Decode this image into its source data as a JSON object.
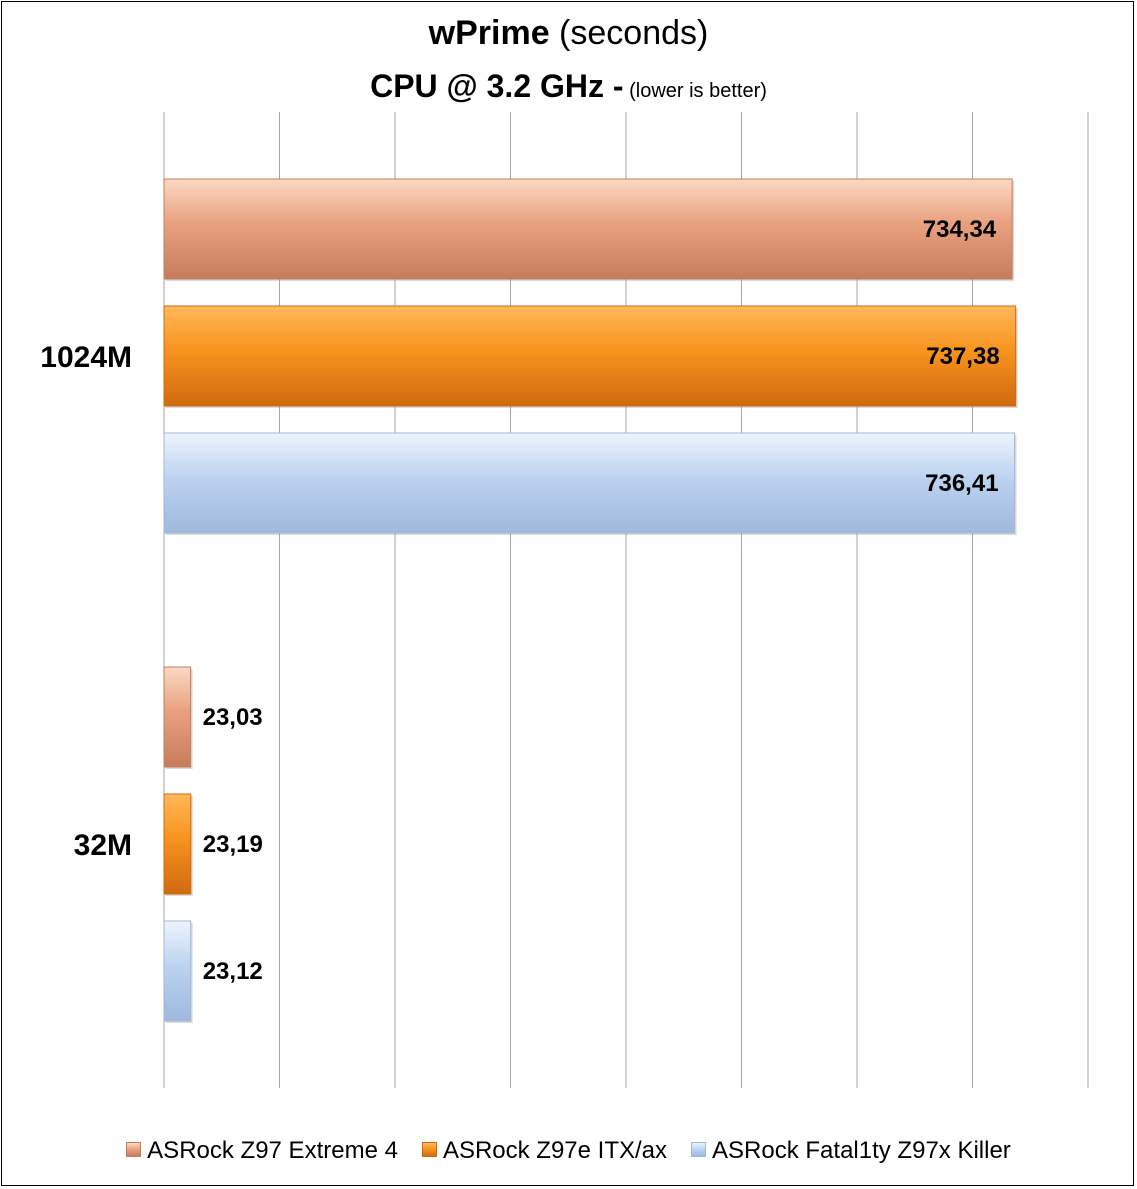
{
  "title": {
    "main_bold": "wPrime",
    "main_rest": " (seconds)",
    "sub_bold": "CPU @ 3.2 GHz  -",
    "sub_small": " (lower is better)"
  },
  "chart_data": {
    "type": "bar",
    "orientation": "horizontal",
    "categories": [
      "1024M",
      "32M"
    ],
    "series": [
      {
        "name": "ASRock Z97 Extreme 4",
        "values": [
          734.34,
          23.03
        ],
        "labels": [
          "734,34",
          "23,03"
        ],
        "color": "#e8a07e",
        "light": "#fbd9c4",
        "dark": "#c67d5c"
      },
      {
        "name": "ASRock Z97e ITX/ax",
        "values": [
          737.38,
          23.19
        ],
        "labels": [
          "737,38",
          "23,19"
        ],
        "color": "#f7931e",
        "light": "#ffb85a",
        "dark": "#d06a10"
      },
      {
        "name": "ASRock Fatal1ty Z97x Killer",
        "values": [
          736.41,
          23.12
        ],
        "labels": [
          "736,41",
          "23,12"
        ],
        "color": "#bcd3f0",
        "light": "#eef4fd",
        "dark": "#9fb8dc"
      }
    ],
    "xlim": [
      0,
      800
    ],
    "grid": true,
    "legend_position": "bottom"
  }
}
